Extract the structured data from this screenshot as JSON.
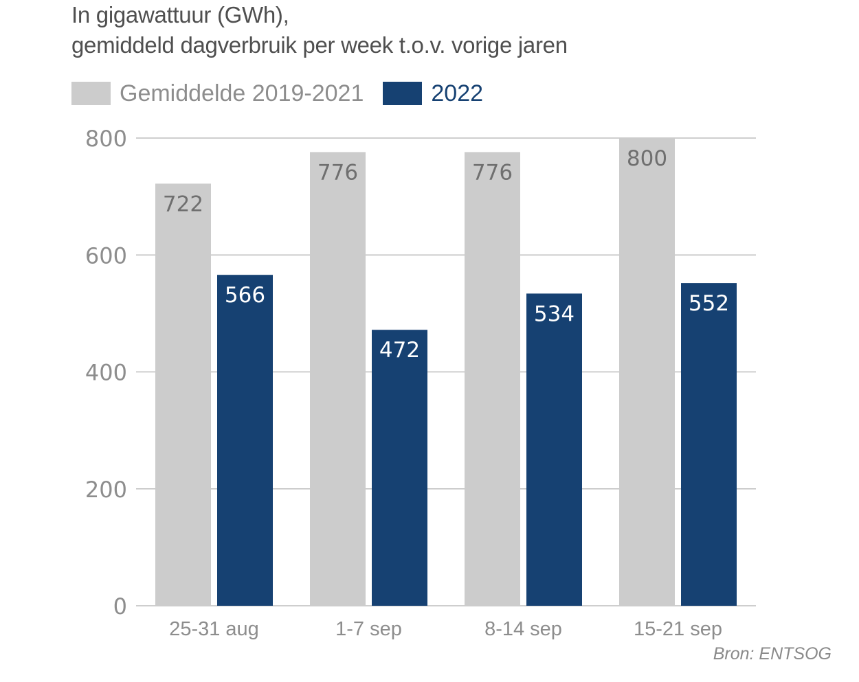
{
  "chart_data": {
    "type": "bar",
    "title": "In gigawattuur (GWh),",
    "subtitle": "gemiddeld dagverbruik per week t.o.v. vorige jaren",
    "xlabel": "",
    "ylabel": "",
    "ylim": [
      0,
      800
    ],
    "yticks": [
      0,
      200,
      400,
      600,
      800
    ],
    "grid": true,
    "legend_position": "top-left",
    "categories": [
      "25-31 aug",
      "1-7 sep",
      "8-14 sep",
      "15-21 sep"
    ],
    "series": [
      {
        "name": "Gemiddelde 2019-2021",
        "color": "#cccccc",
        "label_color": "#6f6f6f",
        "values": [
          722,
          776,
          776,
          800
        ]
      },
      {
        "name": "2022",
        "color": "#164172",
        "label_color": "#ffffff",
        "values": [
          566,
          472,
          534,
          552
        ]
      }
    ],
    "source": "Bron: ENTSOG"
  },
  "legend_text_colors": [
    "#8d8d8d",
    "#164172"
  ]
}
